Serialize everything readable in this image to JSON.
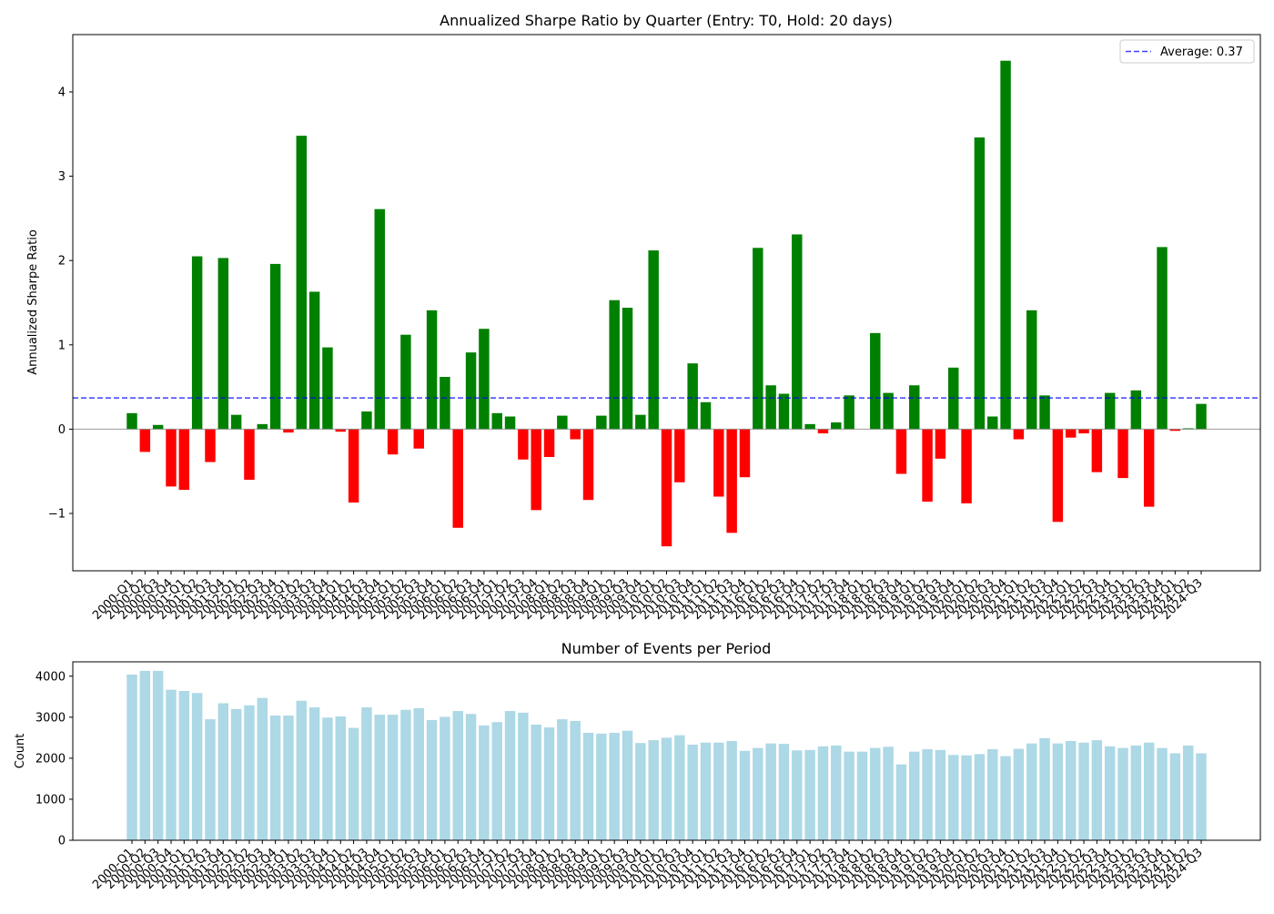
{
  "colors": {
    "positive": "#008000",
    "negative": "#ff0000",
    "count_bar": "#add8e6",
    "average_line": "#0000ff",
    "zero_line": "#808080"
  },
  "chart_data": [
    {
      "type": "bar",
      "title": "Annualized Sharpe Ratio by Quarter (Entry: T0, Hold: 20 days)",
      "xlabel": "",
      "ylabel": "Annualized Sharpe Ratio",
      "ylim": [
        -1.68,
        4.68
      ],
      "yticks": [
        -1,
        0,
        1,
        2,
        3,
        4
      ],
      "legend": {
        "label": "Average: 0.37",
        "placement": "top-right",
        "style": "dashed"
      },
      "average": 0.37,
      "grid": false,
      "categories": [
        "2000-Q1",
        "2000-Q2",
        "2000-Q3",
        "2000-Q4",
        "2001-Q1",
        "2001-Q2",
        "2001-Q3",
        "2001-Q4",
        "2002-Q1",
        "2002-Q2",
        "2002-Q3",
        "2002-Q4",
        "2003-Q1",
        "2003-Q2",
        "2003-Q3",
        "2003-Q4",
        "2004-Q1",
        "2004-Q2",
        "2004-Q3",
        "2004-Q4",
        "2005-Q1",
        "2005-Q2",
        "2005-Q3",
        "2005-Q4",
        "2006-Q1",
        "2006-Q2",
        "2006-Q3",
        "2006-Q4",
        "2007-Q1",
        "2007-Q2",
        "2007-Q3",
        "2007-Q4",
        "2008-Q1",
        "2008-Q2",
        "2008-Q3",
        "2008-Q4",
        "2009-Q1",
        "2009-Q2",
        "2009-Q3",
        "2009-Q4",
        "2010-Q1",
        "2010-Q2",
        "2010-Q3",
        "2010-Q4",
        "2011-Q1",
        "2011-Q2",
        "2011-Q3",
        "2011-Q4",
        "2016-Q1",
        "2016-Q2",
        "2016-Q3",
        "2016-Q4",
        "2017-Q1",
        "2017-Q2",
        "2017-Q3",
        "2017-Q4",
        "2018-Q1",
        "2018-Q2",
        "2018-Q3",
        "2018-Q4",
        "2019-Q1",
        "2019-Q2",
        "2019-Q3",
        "2019-Q4",
        "2020-Q1",
        "2020-Q2",
        "2020-Q3",
        "2020-Q4",
        "2021-Q1",
        "2021-Q2",
        "2021-Q3",
        "2021-Q4",
        "2022-Q1",
        "2022-Q2",
        "2022-Q3",
        "2022-Q4",
        "2023-Q1",
        "2023-Q2",
        "2023-Q3",
        "2023-Q4",
        "2024-Q1",
        "2024-Q2",
        "2024-Q3"
      ],
      "values": [
        0.19,
        -0.27,
        0.05,
        -0.68,
        -0.72,
        2.05,
        -0.39,
        2.03,
        0.17,
        -0.6,
        0.06,
        1.96,
        -0.04,
        3.48,
        1.63,
        0.97,
        -0.03,
        -0.87,
        0.21,
        2.61,
        -0.3,
        1.12,
        -0.23,
        1.41,
        0.62,
        -1.17,
        0.91,
        1.19,
        0.19,
        0.15,
        -0.36,
        -0.96,
        -0.33,
        0.16,
        -0.12,
        -0.84,
        0.16,
        1.53,
        1.44,
        0.17,
        2.12,
        -1.39,
        -0.63,
        0.78,
        0.32,
        -0.8,
        -1.23,
        -0.57,
        2.15,
        0.52,
        0.42,
        2.31,
        0.06,
        -0.05,
        0.08,
        0.4,
        0.0,
        1.14,
        0.43,
        -0.53,
        0.52,
        -0.86,
        -0.35,
        0.73,
        -0.88,
        3.46,
        0.15,
        4.37,
        -0.12,
        1.41,
        0.4,
        -1.1,
        -0.1,
        -0.05,
        -0.51,
        0.43,
        -0.58,
        0.46,
        -0.92,
        2.16,
        -0.02,
        0.01,
        0.3
      ],
      "tick_labels_shown": [
        "2000-Q1",
        "2000-Q2",
        "2000-Q3",
        "2000-Q4",
        "2001-Q1",
        "2001-Q2",
        "2001-Q3",
        "2001-Q4",
        "2002-Q1",
        "2002-Q2",
        "2002-Q3",
        "2002-Q4",
        "2003-Q1",
        "2003-Q2",
        "2003-Q3",
        "2003-Q4",
        "2004-Q1",
        "2004-Q2",
        "2004-Q3",
        "2004-Q4",
        "2005-Q1",
        "2005-Q2",
        "2005-Q3",
        "2005-Q4",
        "2006-Q1",
        "2006-Q2",
        "2006-Q3",
        "2006-Q4",
        "2007-Q1",
        "2007-Q2",
        "2007-Q3",
        "2007-Q4",
        "2008-Q1",
        "2008-Q2",
        "2008-Q3",
        "2008-Q4",
        "2009-Q1",
        "2009-Q2",
        "2009-Q3",
        "2009-Q4",
        "2010-Q1",
        "2010-Q2",
        "2010-Q3",
        "2010-Q4",
        "2011-Q1",
        "2011-Q2",
        "2011-Q3",
        "2011-Q4",
        "2016-Q1",
        "2016-Q2",
        "2016-Q3",
        "2016-Q4",
        "2017-Q1",
        "2017-Q2",
        "2017-Q3",
        "2017-Q4",
        "2018-Q1",
        "2018-Q2",
        "2018-Q3",
        "2018-Q4",
        "2019-Q1",
        "2019-Q2",
        "2019-Q3",
        "2019-Q4",
        "2020-Q1",
        "2020-Q2",
        "2020-Q3",
        "2020-Q4",
        "2021-Q1",
        "2021-Q2",
        "2021-Q3",
        "2021-Q4",
        "2022-Q1",
        "2022-Q2",
        "2022-Q3",
        "2022-Q4",
        "2023-Q1",
        "2023-Q2",
        "2023-Q3",
        "2023-Q4",
        "2024-Q1",
        "2024-Q2",
        "2024-Q3"
      ]
    },
    {
      "type": "bar",
      "title": "Number of Events per Period",
      "xlabel": "",
      "ylabel": "Count",
      "ylim": [
        0,
        4350
      ],
      "yticks": [
        0,
        1000,
        2000,
        3000,
        4000
      ],
      "grid": false,
      "categories": [
        "2000-Q1",
        "2000-Q2",
        "2000-Q3",
        "2000-Q4",
        "2001-Q1",
        "2001-Q2",
        "2001-Q3",
        "2001-Q4",
        "2002-Q1",
        "2002-Q2",
        "2002-Q3",
        "2002-Q4",
        "2003-Q1",
        "2003-Q2",
        "2003-Q3",
        "2003-Q4",
        "2004-Q1",
        "2004-Q2",
        "2004-Q3",
        "2004-Q4",
        "2005-Q1",
        "2005-Q2",
        "2005-Q3",
        "2005-Q4",
        "2006-Q1",
        "2006-Q2",
        "2006-Q3",
        "2006-Q4",
        "2007-Q1",
        "2007-Q2",
        "2007-Q3",
        "2007-Q4",
        "2008-Q1",
        "2008-Q2",
        "2008-Q3",
        "2008-Q4",
        "2009-Q1",
        "2009-Q2",
        "2009-Q3",
        "2009-Q4",
        "2010-Q1",
        "2010-Q2",
        "2010-Q3",
        "2010-Q4",
        "2011-Q1",
        "2011-Q2",
        "2011-Q3",
        "2011-Q4",
        "2016-Q1",
        "2016-Q2",
        "2016-Q3",
        "2016-Q4",
        "2017-Q1",
        "2017-Q2",
        "2017-Q3",
        "2017-Q4",
        "2018-Q1",
        "2018-Q2",
        "2018-Q3",
        "2018-Q4",
        "2019-Q1",
        "2019-Q2",
        "2019-Q3",
        "2019-Q4",
        "2020-Q1",
        "2020-Q2",
        "2020-Q3",
        "2020-Q4",
        "2021-Q1",
        "2021-Q2",
        "2021-Q3",
        "2021-Q4",
        "2022-Q1",
        "2022-Q2",
        "2022-Q3",
        "2022-Q4",
        "2023-Q1",
        "2023-Q2",
        "2023-Q3",
        "2023-Q4",
        "2024-Q1",
        "2024-Q2",
        "2024-Q3"
      ],
      "values": [
        4040,
        4130,
        4130,
        3670,
        3640,
        3590,
        2950,
        3340,
        3200,
        3290,
        3470,
        3040,
        3040,
        3400,
        3240,
        2990,
        3020,
        2740,
        3240,
        3060,
        3060,
        3180,
        3220,
        2930,
        3010,
        3150,
        3080,
        2800,
        2880,
        3150,
        3110,
        2820,
        2750,
        2950,
        2910,
        2620,
        2600,
        2620,
        2670,
        2370,
        2440,
        2500,
        2560,
        2330,
        2380,
        2380,
        2420,
        2180,
        2250,
        2360,
        2350,
        2190,
        2200,
        2290,
        2310,
        2160,
        2160,
        2250,
        2280,
        1850,
        2160,
        2220,
        2200,
        2080,
        2070,
        2100,
        2220,
        2050,
        2230,
        2360,
        2490,
        2360,
        2420,
        2380,
        2440,
        2290,
        2250,
        2310,
        2380,
        2250,
        2120,
        2310,
        2120
      ],
      "tick_labels_shown": [
        "2000-Q1",
        "2000-Q2",
        "2000-Q3",
        "2000-Q4",
        "2001-Q1",
        "2001-Q2",
        "2001-Q3",
        "2001-Q4",
        "2002-Q1",
        "2002-Q2",
        "2002-Q3",
        "2002-Q4",
        "2003-Q1",
        "2003-Q2",
        "2003-Q3",
        "2003-Q4",
        "2004-Q1",
        "2004-Q2",
        "2004-Q3",
        "2004-Q4",
        "2005-Q1",
        "2005-Q2",
        "2005-Q3",
        "2005-Q4",
        "2006-Q1",
        "2006-Q2",
        "2006-Q3",
        "2006-Q4",
        "2007-Q1",
        "2007-Q2",
        "2007-Q3",
        "2007-Q4",
        "2008-Q1",
        "2008-Q2",
        "2008-Q3",
        "2008-Q4",
        "2009-Q1",
        "2009-Q2",
        "2009-Q3",
        "2009-Q4",
        "2010-Q1",
        "2010-Q2",
        "2010-Q3",
        "2010-Q4",
        "2011-Q1",
        "2011-Q2",
        "2011-Q3",
        "2011-Q4",
        "2016-Q1",
        "2016-Q2",
        "2016-Q3",
        "2016-Q4",
        "2017-Q1",
        "2017-Q2",
        "2017-Q3",
        "2017-Q4",
        "2018-Q1",
        "2018-Q2",
        "2018-Q3",
        "2018-Q4",
        "2019-Q1",
        "2019-Q2",
        "2019-Q3",
        "2019-Q4",
        "2020-Q1",
        "2020-Q2",
        "2020-Q3",
        "2020-Q4",
        "2021-Q1",
        "2021-Q2",
        "2021-Q3",
        "2021-Q4",
        "2022-Q1",
        "2022-Q2",
        "2022-Q3",
        "2022-Q4",
        "2023-Q1",
        "2023-Q2",
        "2023-Q3",
        "2023-Q4",
        "2024-Q1",
        "2024-Q2",
        "2024-Q3"
      ]
    }
  ]
}
